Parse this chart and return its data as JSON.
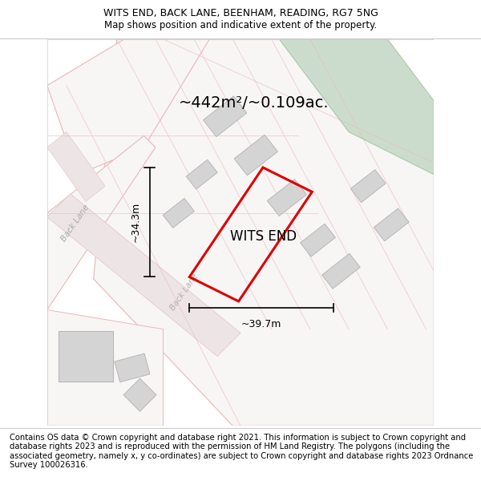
{
  "title_line1": "WITS END, BACK LANE, BEENHAM, READING, RG7 5NG",
  "title_line2": "Map shows position and indicative extent of the property.",
  "area_label": "~442m²/~0.109ac.",
  "property_label": "WITS END",
  "dim_height": "~34.3m",
  "dim_width": "~39.7m",
  "footer_text": "Contains OS data © Crown copyright and database right 2021. This information is subject to Crown copyright and database rights 2023 and is reproduced with the permission of HM Land Registry. The polygons (including the associated geometry, namely x, y co-ordinates) are subject to Crown copyright and database rights 2023 Ordnance Survey 100026316.",
  "map_bg": "#f2efef",
  "road_color": "#e8c8c8",
  "building_fill": "#d4d4d4",
  "building_edge": "#b8b8b8",
  "red_outline": "#dd0000",
  "green_fill": "#ccdccc",
  "green_edge": "#aac8aa",
  "parcel_color": "#e8b8b8",
  "black": "#000000",
  "white": "#ffffff",
  "gray_road_label": "#aaaaaa",
  "title_fontsize": 9,
  "footer_fontsize": 7.2,
  "area_fontsize": 14,
  "property_fontsize": 12,
  "dim_fontsize": 9
}
